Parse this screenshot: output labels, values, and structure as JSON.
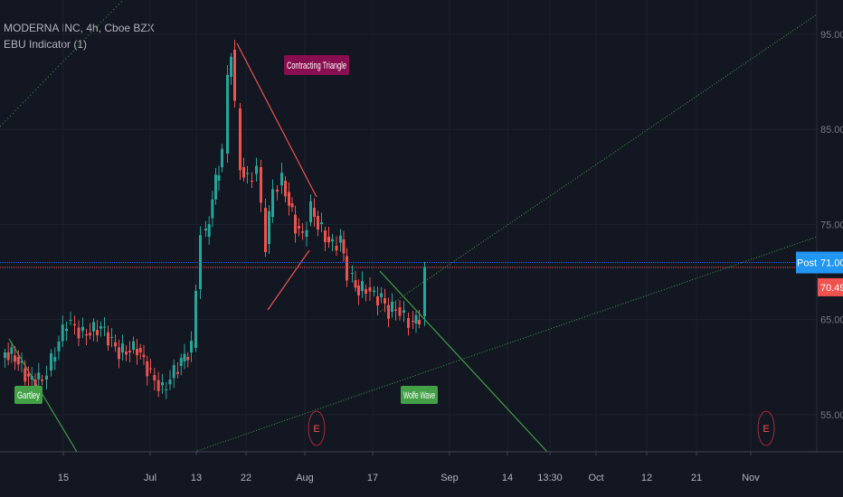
{
  "header": {
    "symbol": "MODERNA INC, 4h, Cboe BZX",
    "indicator": "EBU Indicator (1)"
  },
  "chart_data": {
    "type": "candlestick",
    "y_ticks": [
      "95.00",
      "85.00",
      "75.00",
      "65.00",
      "55.00"
    ],
    "y_tick_values": [
      95,
      85,
      75,
      65,
      55
    ],
    "ylim": [
      51.1,
      98.6
    ],
    "x_ticks": [
      "15",
      "Jul",
      "13",
      "22",
      "Aug",
      "17",
      "Sep",
      "14",
      "13:30",
      "Oct",
      "12",
      "21",
      "Nov"
    ],
    "price_labels": {
      "post_label": "Post",
      "post_value": "71.00",
      "last_value": "70.49",
      "post_price": 71.0,
      "last_price": 70.49
    },
    "patterns": [
      {
        "label": "Contracting Triangle",
        "color": "#880e4f"
      },
      {
        "label": "Gartley",
        "color": "#43a047"
      },
      {
        "label": "Wolfe Wave",
        "color": "#43a047"
      }
    ],
    "event_markers": [
      "E",
      "E"
    ],
    "colors": {
      "up": "#26a69a",
      "down": "#ef5350",
      "post_line": "#2962ff",
      "last_line": "#ef5350",
      "pattern_line": "#43a047",
      "triangle_line": "#ef5350"
    }
  }
}
